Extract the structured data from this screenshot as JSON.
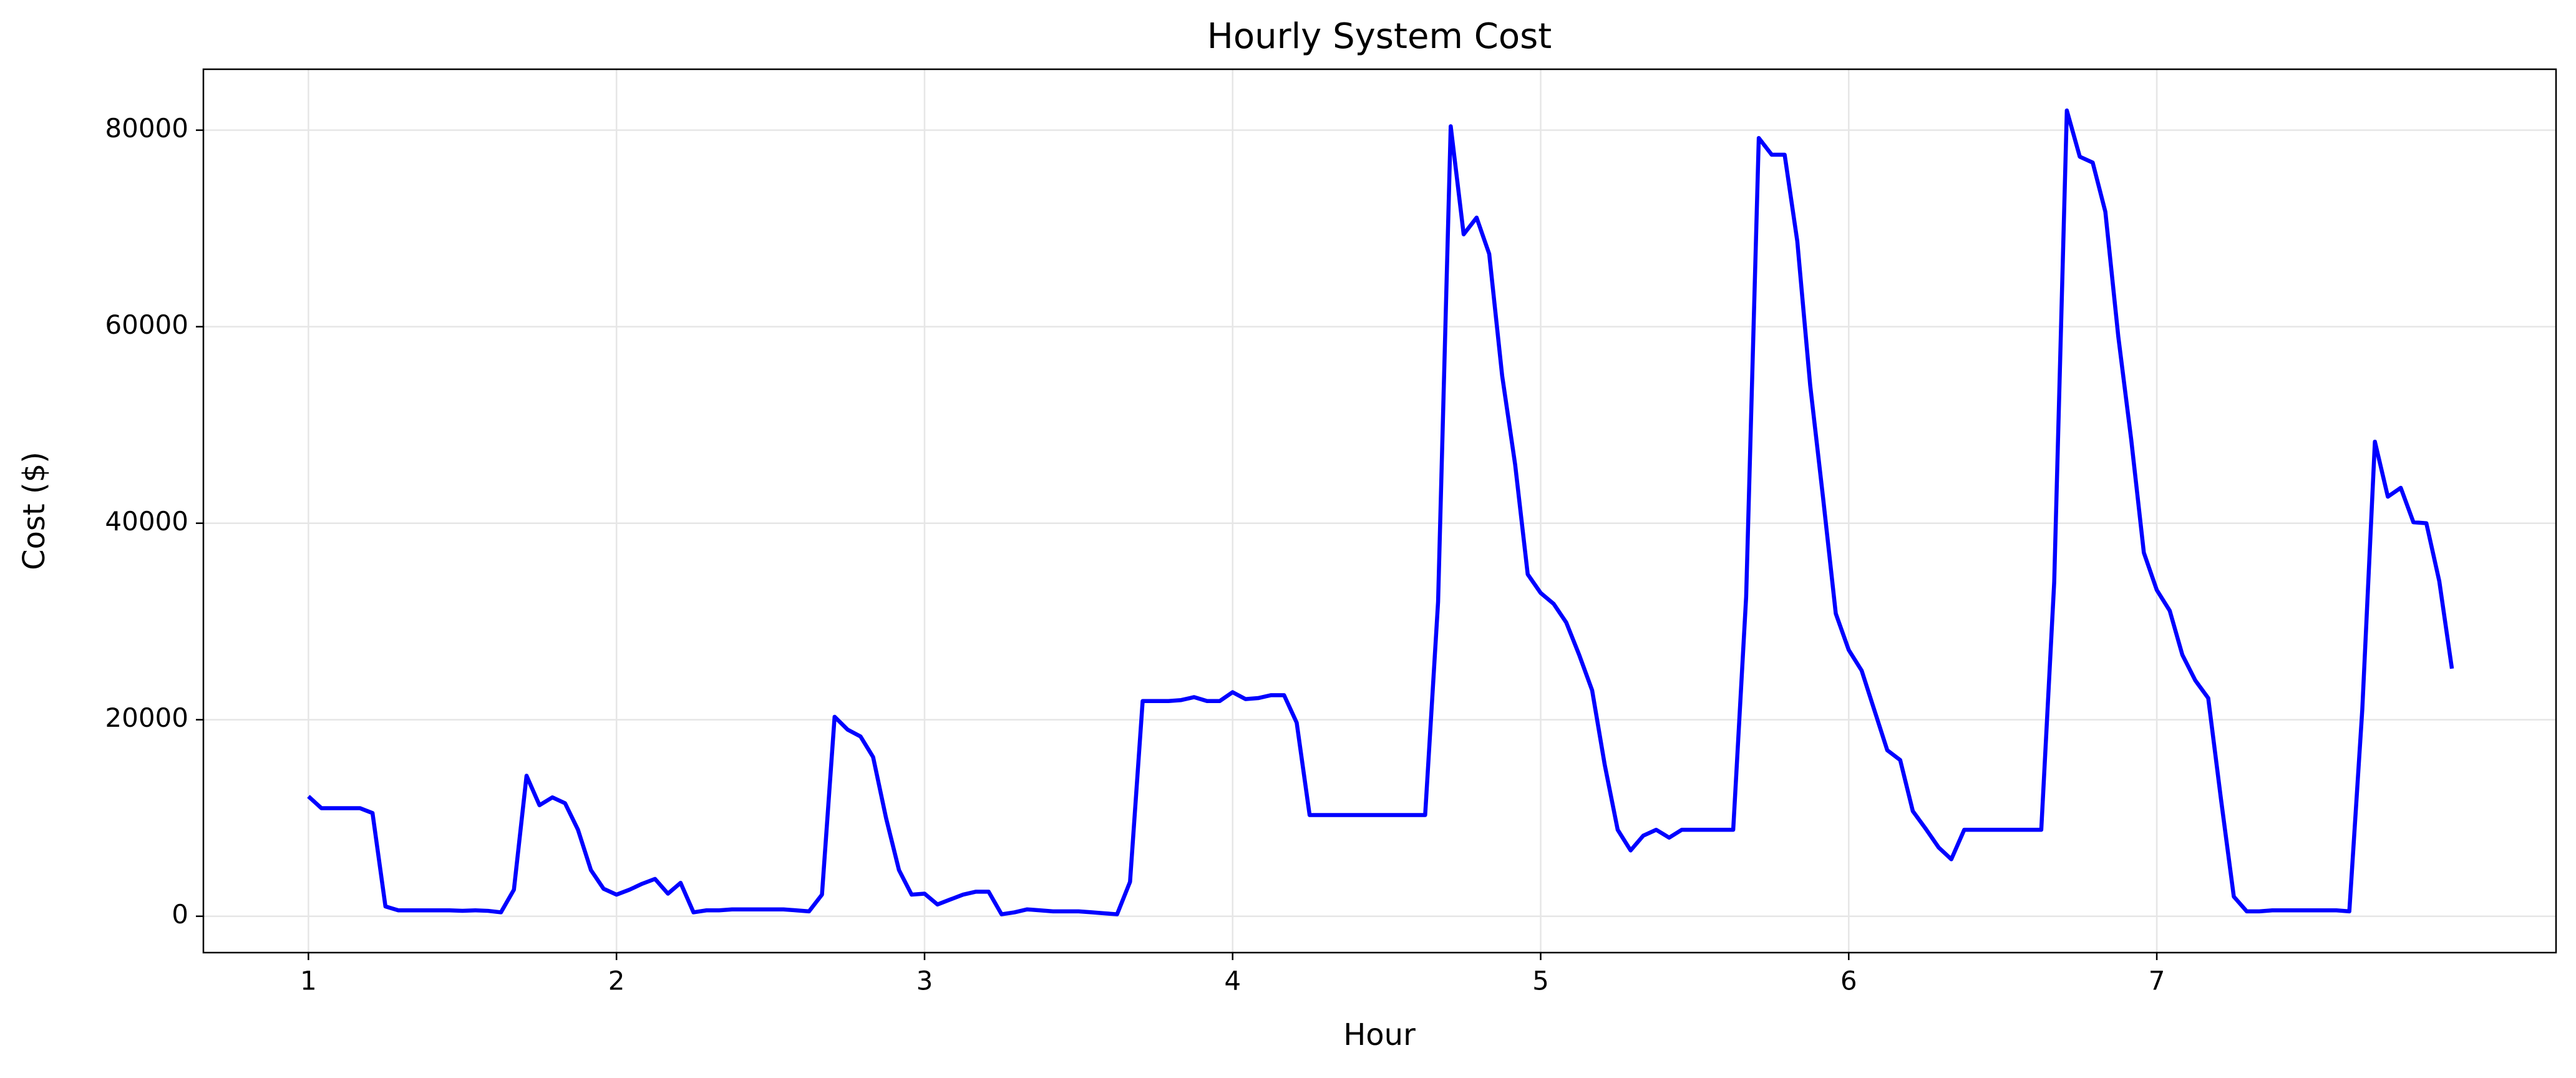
{
  "chart_data": {
    "type": "line",
    "title": "Hourly System Cost",
    "xlabel": "Hour",
    "ylabel": "Cost ($)",
    "color": "#0000ff",
    "grid": true,
    "xlim": [
      0.659,
      8.296
    ],
    "ylim": [
      -3700,
      86200
    ],
    "xticks": [
      1,
      2,
      3,
      4,
      5,
      6,
      7
    ],
    "yticks": [
      0,
      20000,
      40000,
      60000,
      80000
    ],
    "x": [
      1,
      1.042,
      1.083,
      1.125,
      1.167,
      1.208,
      1.25,
      1.292,
      1.333,
      1.375,
      1.417,
      1.458,
      1.5,
      1.542,
      1.583,
      1.625,
      1.667,
      1.708,
      1.75,
      1.792,
      1.833,
      1.875,
      1.917,
      1.958,
      2,
      2.042,
      2.083,
      2.125,
      2.167,
      2.208,
      2.25,
      2.292,
      2.333,
      2.375,
      2.417,
      2.458,
      2.5,
      2.542,
      2.583,
      2.625,
      2.667,
      2.708,
      2.75,
      2.792,
      2.833,
      2.875,
      2.917,
      2.958,
      3,
      3.042,
      3.083,
      3.125,
      3.167,
      3.208,
      3.25,
      3.292,
      3.333,
      3.375,
      3.417,
      3.458,
      3.5,
      3.542,
      3.583,
      3.625,
      3.667,
      3.708,
      3.75,
      3.792,
      3.833,
      3.875,
      3.917,
      3.958,
      4,
      4.042,
      4.083,
      4.125,
      4.167,
      4.208,
      4.25,
      4.292,
      4.333,
      4.375,
      4.417,
      4.458,
      4.5,
      4.542,
      4.583,
      4.625,
      4.667,
      4.708,
      4.75,
      4.792,
      4.833,
      4.875,
      4.917,
      4.958,
      5,
      5.042,
      5.083,
      5.125,
      5.167,
      5.208,
      5.25,
      5.292,
      5.333,
      5.375,
      5.417,
      5.458,
      5.5,
      5.542,
      5.583,
      5.625,
      5.667,
      5.708,
      5.75,
      5.792,
      5.833,
      5.875,
      5.917,
      5.958,
      6,
      6.042,
      6.083,
      6.125,
      6.167,
      6.208,
      6.25,
      6.292,
      6.333,
      6.375,
      6.417,
      6.458,
      6.5,
      6.542,
      6.583,
      6.625,
      6.667,
      6.708,
      6.75,
      6.792,
      6.833,
      6.875,
      6.917,
      6.958,
      7,
      7.042,
      7.083,
      7.125,
      7.167,
      7.208,
      7.25,
      7.292,
      7.333,
      7.375,
      7.417,
      7.458,
      7.5,
      7.542,
      7.583,
      7.625,
      7.667,
      7.708,
      7.75,
      7.792,
      7.833,
      7.875,
      7.917,
      7.958
    ],
    "values": [
      12200,
      11000,
      11000,
      11000,
      11000,
      10500,
      1000,
      600,
      600,
      600,
      600,
      600,
      550,
      600,
      550,
      400,
      2700,
      14300,
      11300,
      12100,
      11500,
      8800,
      4700,
      2800,
      2200,
      2700,
      3300,
      3800,
      2300,
      3400,
      400,
      600,
      600,
      700,
      700,
      700,
      700,
      700,
      600,
      500,
      2200,
      20300,
      19000,
      18300,
      16200,
      10000,
      4700,
      2200,
      2300,
      1200,
      1700,
      2200,
      2500,
      2500,
      200,
      400,
      700,
      600,
      500,
      500,
      500,
      400,
      300,
      200,
      3500,
      21900,
      21900,
      21900,
      22000,
      22300,
      21900,
      21900,
      22800,
      22100,
      22200,
      22500,
      22500,
      19700,
      10300,
      10300,
      10300,
      10300,
      10300,
      10300,
      10300,
      10300,
      10300,
      10300,
      32000,
      80400,
      69400,
      71100,
      67400,
      55000,
      46000,
      34800,
      32900,
      31800,
      29900,
      26600,
      23000,
      15400,
      8800,
      6700,
      8200,
      8800,
      8000,
      8800,
      8800,
      8800,
      8800,
      8800,
      32500,
      79200,
      77500,
      77500,
      68700,
      54000,
      42500,
      30800,
      27100,
      25000,
      21000,
      16900,
      15900,
      10700,
      8900,
      7000,
      5800,
      8800,
      8800,
      8800,
      8800,
      8800,
      8800,
      8800,
      34000,
      82000,
      77300,
      76700,
      71700,
      59000,
      48500,
      37000,
      33200,
      31100,
      26600,
      24000,
      22200,
      12000,
      2000,
      500,
      500,
      600,
      600,
      600,
      600,
      600,
      600,
      500,
      21000,
      48300,
      42700,
      43600,
      40100,
      40000,
      34100,
      25200
    ]
  }
}
